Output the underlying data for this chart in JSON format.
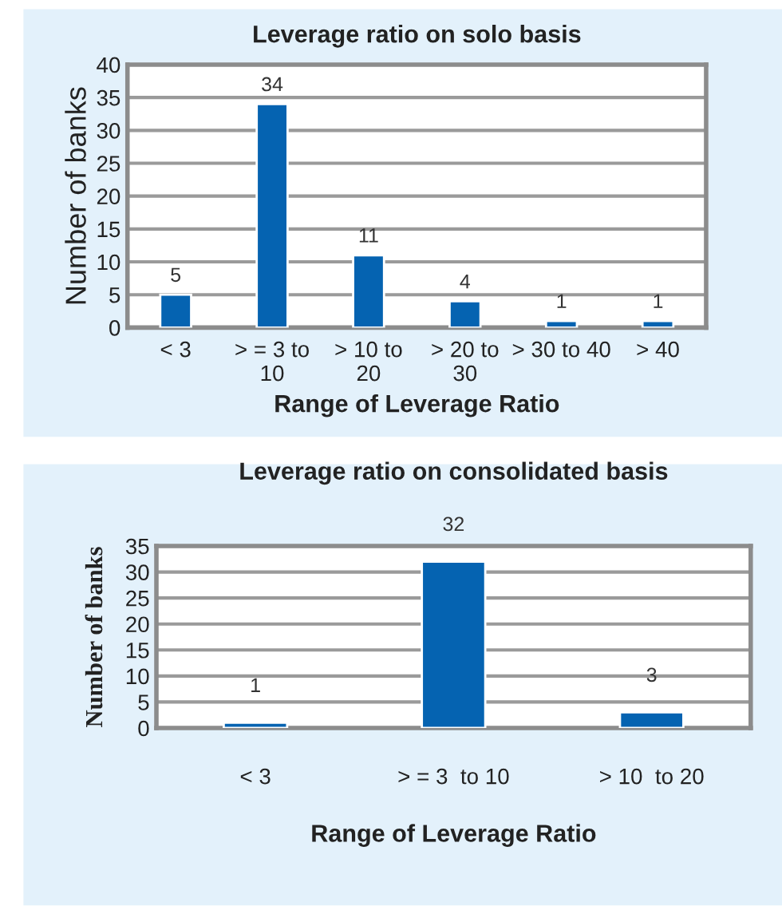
{
  "chart_data": [
    {
      "type": "bar",
      "title": "Leverage ratio on solo basis",
      "xlabel": "Range of Leverage Ratio",
      "ylabel": "Number of banks",
      "categories": [
        "< 3",
        "> = 3 to\n10",
        "> 10 to\n20",
        "> 20 to\n30",
        "> 30 to 40",
        "> 40"
      ],
      "values": [
        5,
        34,
        11,
        4,
        1,
        1
      ],
      "color": "#0563b1",
      "ylim": [
        0,
        40
      ],
      "yticks": [
        0,
        5,
        10,
        15,
        20,
        25,
        30,
        35,
        40
      ],
      "grid": "y",
      "data_labels": true
    },
    {
      "type": "bar",
      "title": "Leverage ratio on consolidated basis",
      "xlabel": "Range of Leverage Ratio",
      "ylabel": "Number of banks",
      "categories": [
        "< 3",
        "> = 3  to 10",
        "> 10  to 20"
      ],
      "values": [
        1,
        32,
        3
      ],
      "color": "#0563b1",
      "ylim": [
        0,
        35
      ],
      "yticks": [
        0,
        5,
        10,
        15,
        20,
        25,
        30,
        35
      ],
      "grid": "y",
      "data_labels": true
    }
  ]
}
